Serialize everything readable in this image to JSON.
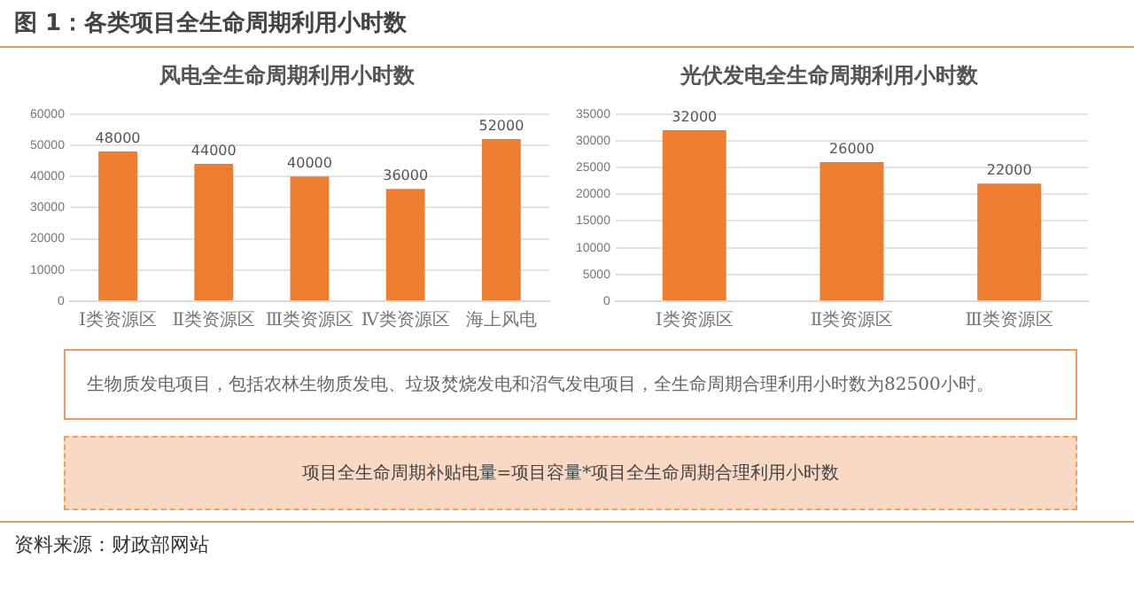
{
  "chart_data": [
    {
      "type": "bar",
      "title": "风电全生命周期利用小时数",
      "categories": [
        "Ⅰ类资源区",
        "Ⅱ类资源区",
        "Ⅲ类资源区",
        "Ⅳ类资源区",
        "海上风电"
      ],
      "values": [
        48000,
        44000,
        40000,
        36000,
        52000
      ],
      "color": "#ed7d31",
      "ylim": [
        0,
        60000
      ],
      "yticks": [
        0,
        10000,
        20000,
        30000,
        40000,
        50000,
        60000
      ],
      "grid": "y",
      "data_labels": true
    },
    {
      "type": "bar",
      "title": "光伏发电全生命周期利用小时数",
      "categories": [
        "Ⅰ类资源区",
        "Ⅱ类资源区",
        "Ⅲ类资源区"
      ],
      "values": [
        32000,
        26000,
        22000
      ],
      "color": "#ed7d31",
      "ylim": [
        0,
        35000
      ],
      "yticks": [
        0,
        5000,
        10000,
        15000,
        20000,
        25000,
        30000,
        35000
      ],
      "grid": "y",
      "data_labels": true
    },
    {
      "type": "other",
      "title": "图 1：各类项目全生命周期利用小时数",
      "annotations": [
        "生物质发电项目，包括农林生物质发电、垃圾焚烧发电和沼气发电项目，全生命周期合理利用小时数为82500小时。",
        "项目全生命周期补贴电量=项目容量*项目全生命周期合理利用小时数",
        "资料来源：财政部网站"
      ]
    }
  ]
}
